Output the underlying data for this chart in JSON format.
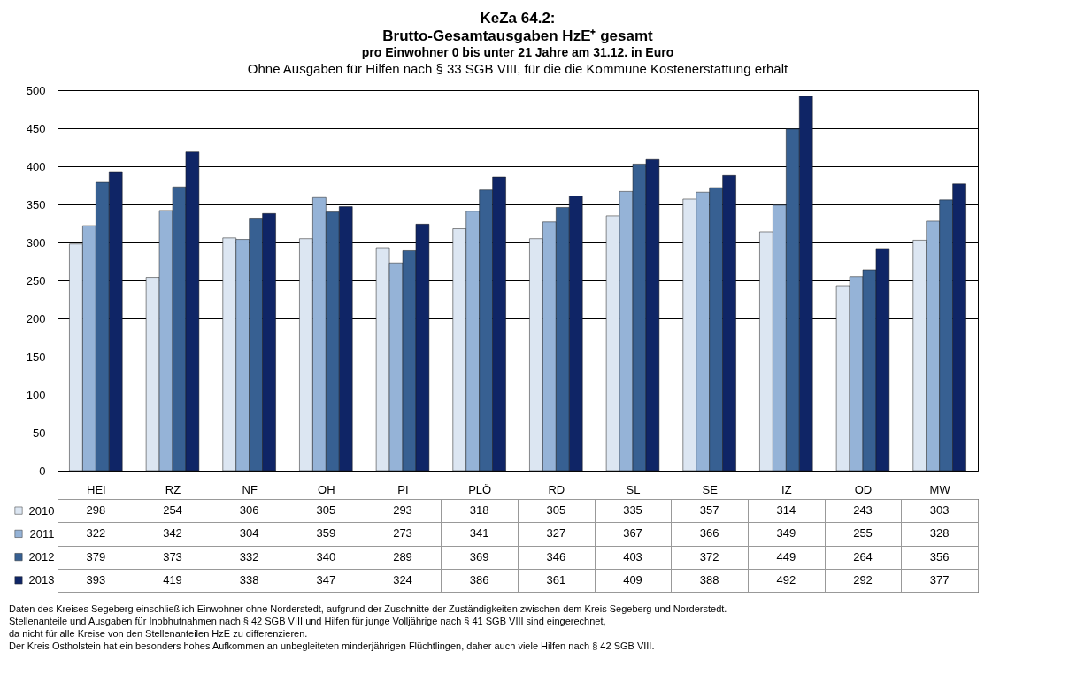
{
  "chart_data": {
    "type": "bar",
    "title": "KeZa 64.2:\nBrutto-Gesamtausgaben HzE⁺ gesamt",
    "subtitle": "pro Einwohner 0 bis unter 21 Jahre am 31.12. in Euro\nOhne Ausgaben für Hilfen nach § 33 SGB VIII, für die die Kommune Kostenerstattung erhält",
    "categories": [
      "HEI",
      "RZ",
      "NF",
      "OH",
      "PI",
      "PLÖ",
      "RD",
      "SL",
      "SE",
      "IZ",
      "OD",
      "MW"
    ],
    "series": [
      {
        "name": "2010",
        "color": "#dce6f2",
        "values": [
          298,
          254,
          306,
          305,
          293,
          318,
          305,
          335,
          357,
          314,
          243,
          303
        ]
      },
      {
        "name": "2011",
        "color": "#95b3d7",
        "values": [
          322,
          342,
          304,
          359,
          273,
          341,
          327,
          367,
          366,
          349,
          255,
          328
        ]
      },
      {
        "name": "2012",
        "color": "#376092",
        "values": [
          379,
          373,
          332,
          340,
          289,
          369,
          346,
          403,
          372,
          449,
          264,
          356
        ]
      },
      {
        "name": "2013",
        "color": "#0f2566",
        "values": [
          393,
          419,
          338,
          347,
          324,
          386,
          361,
          409,
          388,
          492,
          292,
          377
        ]
      }
    ],
    "ylim": [
      0,
      500
    ],
    "yticks": [
      0,
      50,
      100,
      150,
      200,
      250,
      300,
      350,
      400,
      450,
      500
    ],
    "grid": "y",
    "legend": "bottom left",
    "data_labels": true,
    "annotations": [
      "Daten des Kreises Segeberg einschließlich Einwohner ohne Norderstedt, aufgrund der Zuschnitte der Zuständigkeiten zwischen dem Kreis Segeberg und Norderstedt.",
      "Stellenanteile und Ausgaben für Inobhutnahmen nach § 42 SGB VIII und Hilfen für junge Volljährige nach § 41 SGB VIII sind eingerechnet,",
      "da nicht für alle Kreise von den Stellenanteilen HzE zu differenzieren.",
      "Der Kreis Ostholstein hat ein besonders hohes Aufkommen an unbegleiteten minderjährigen Flüchtlingen, daher auch viele Hilfen nach § 42 SGB VIII."
    ]
  }
}
